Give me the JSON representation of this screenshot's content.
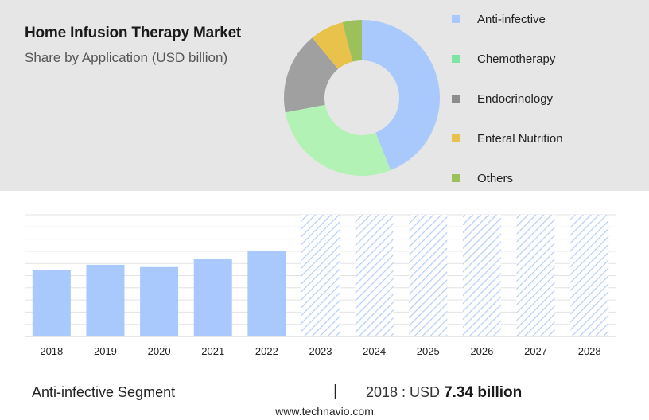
{
  "header": {
    "title": "Home Infusion Therapy Market",
    "subtitle": "Share by Application (USD billion)"
  },
  "chart_data": [
    {
      "type": "pie",
      "variant": "donut",
      "categories": [
        "Anti-infective",
        "Chemotherapy",
        "Endocrinology",
        "Enteral Nutrition",
        "Others"
      ],
      "values": [
        44,
        28,
        17,
        7,
        4
      ],
      "colors": [
        "#a9c8fc",
        "#b3f2b5",
        "#a0a0a0",
        "#e8c24a",
        "#9cc15b"
      ],
      "legend": {
        "position": "right",
        "items": [
          {
            "label": "Anti-infective",
            "color": "#a9c8fc"
          },
          {
            "label": "Chemotherapy",
            "color": "#7fe3a3"
          },
          {
            "label": "Endocrinology",
            "color": "#8c8c8c"
          },
          {
            "label": "Enteral Nutrition",
            "color": "#e8c24a"
          },
          {
            "label": "Others",
            "color": "#9cc15b"
          }
        ]
      }
    },
    {
      "type": "bar",
      "categories": [
        "2018",
        "2019",
        "2020",
        "2021",
        "2022",
        "2023",
        "2024",
        "2025",
        "2026",
        "2027",
        "2028"
      ],
      "values": [
        7.34,
        7.95,
        7.7,
        8.6,
        9.5,
        null,
        null,
        null,
        null,
        null,
        null
      ],
      "forecast_categories": [
        "2023",
        "2024",
        "2025",
        "2026",
        "2027",
        "2028"
      ],
      "ylim": [
        0,
        13.5
      ],
      "grid": true,
      "colors": {
        "actual": "#a9c8fc",
        "forecast_hatch": "#b4cdf5"
      }
    }
  ],
  "footer": {
    "segment": "Anti-infective Segment",
    "divider": "|",
    "year_label": "2018 : USD",
    "amount": "7.34 billion",
    "website": "www.technavio.com"
  }
}
